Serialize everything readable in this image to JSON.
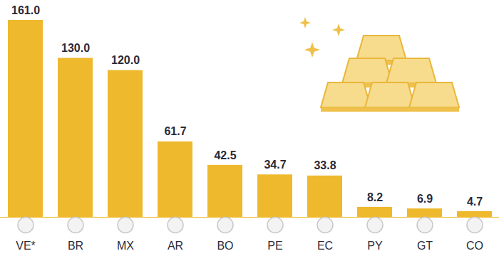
{
  "chart_data": {
    "type": "bar",
    "categories": [
      "VE*",
      "BR",
      "MX",
      "AR",
      "BO",
      "PE",
      "EC",
      "PY",
      "GT",
      "CO"
    ],
    "values": [
      161.0,
      130.0,
      120.0,
      61.7,
      42.5,
      34.7,
      33.8,
      8.2,
      6.9,
      4.7
    ],
    "value_labels": [
      "161.0",
      "130.0",
      "120.0",
      "61.7",
      "42.5",
      "34.7",
      "33.8",
      "8.2",
      "6.9",
      "4.7"
    ],
    "color": "#efb92d",
    "ylim": [
      0,
      161
    ],
    "data_labels": true,
    "tick_labels": "x",
    "grid": false
  }
}
